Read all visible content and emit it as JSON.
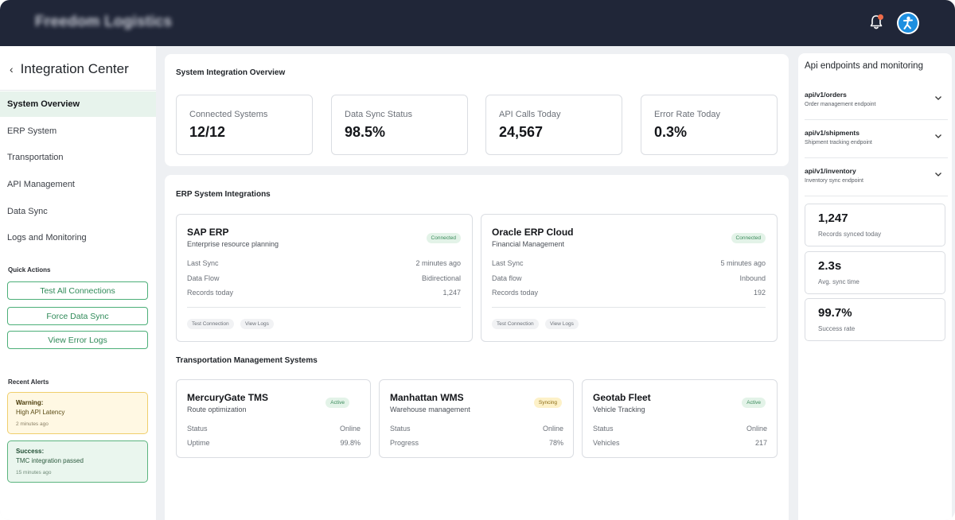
{
  "app": {
    "brand": "Freedom Logistics"
  },
  "colors": {
    "accent": "#4caf78",
    "topbar": "#202638",
    "warning": "#f0cf6c",
    "success": "#5bb47e"
  },
  "sidebar": {
    "title": "Integration Center",
    "nav": [
      {
        "label": "System Overview",
        "active": true
      },
      {
        "label": "ERP System"
      },
      {
        "label": "Transportation"
      },
      {
        "label": "API Management"
      },
      {
        "label": "Data Sync"
      },
      {
        "label": "Logs and Monitoring"
      }
    ],
    "quick_actions_label": "Quick Actions",
    "quick_actions": [
      "Test All Connections",
      "Force Data Sync",
      "View Error Logs"
    ],
    "recent_alerts_label": "Recent Alerts",
    "alerts": [
      {
        "type": "warning",
        "title": "Warning:",
        "body": "High API Latency",
        "time": "2 minutes ago"
      },
      {
        "type": "success",
        "title": "Success:",
        "body": "TMC integration passed",
        "time": "15 minutes ago"
      }
    ]
  },
  "overview": {
    "title": "System Integration Overview",
    "stats": [
      {
        "label": "Connected Systems",
        "value": "12/12"
      },
      {
        "label": "Data Sync Status",
        "value": "98.5%"
      },
      {
        "label": "API Calls Today",
        "value": "24,567"
      },
      {
        "label": "Error Rate Today",
        "value": "0.3%"
      }
    ]
  },
  "erp": {
    "title": "ERP System Integrations",
    "cards": [
      {
        "name": "SAP ERP",
        "subtitle": "Enterprise resource planning",
        "badge": "Connected",
        "rows": [
          {
            "k": "Last Sync",
            "v": "2 minutes ago"
          },
          {
            "k": "Data Flow",
            "v": "Bidirectional"
          },
          {
            "k": "Records today",
            "v": "1,247"
          }
        ],
        "actions": [
          "Test Connection",
          "View Logs"
        ]
      },
      {
        "name": "Oracle ERP Cloud",
        "subtitle": "Financial Management",
        "badge": "Connected",
        "rows": [
          {
            "k": "Last Sync",
            "v": "5 minutes ago"
          },
          {
            "k": "Data flow",
            "v": "Inbound"
          },
          {
            "k": "Records today",
            "v": "192"
          }
        ],
        "actions": [
          "Test Connection",
          "View Logs"
        ]
      }
    ]
  },
  "tms": {
    "title": "Transportation Management Systems",
    "cards": [
      {
        "name": "MercuryGate TMS",
        "subtitle": "Route optimization",
        "badge": "Active",
        "rows": [
          {
            "k": "Status",
            "v": "Online"
          },
          {
            "k": "Uptime",
            "v": "99.8%"
          }
        ]
      },
      {
        "name": "Manhattan WMS",
        "subtitle": "Warehouse management",
        "badge": "Syncing",
        "rows": [
          {
            "k": "Status",
            "v": "Online"
          },
          {
            "k": "Progress",
            "v": "78%"
          }
        ]
      },
      {
        "name": "Geotab Fleet",
        "subtitle": "Vehicle Tracking",
        "badge": "Active",
        "rows": [
          {
            "k": "Status",
            "v": "Online"
          },
          {
            "k": "Vehicles",
            "v": "217"
          }
        ]
      }
    ]
  },
  "api_panel": {
    "title": "Api endpoints and monitoring",
    "endpoints": [
      {
        "path": "api/v1/orders",
        "desc": "Order management endpoint"
      },
      {
        "path": "api/v1/shipments",
        "desc": "Shipment tracking endpoint"
      },
      {
        "path": "api/v1/inventory",
        "desc": "Inventory sync endpoint"
      }
    ],
    "metrics": [
      {
        "value": "1,247",
        "label": "Records synced today"
      },
      {
        "value": "2.3s",
        "label": "Avg. sync time"
      },
      {
        "value": "99.7%",
        "label": "Success rate"
      }
    ]
  }
}
